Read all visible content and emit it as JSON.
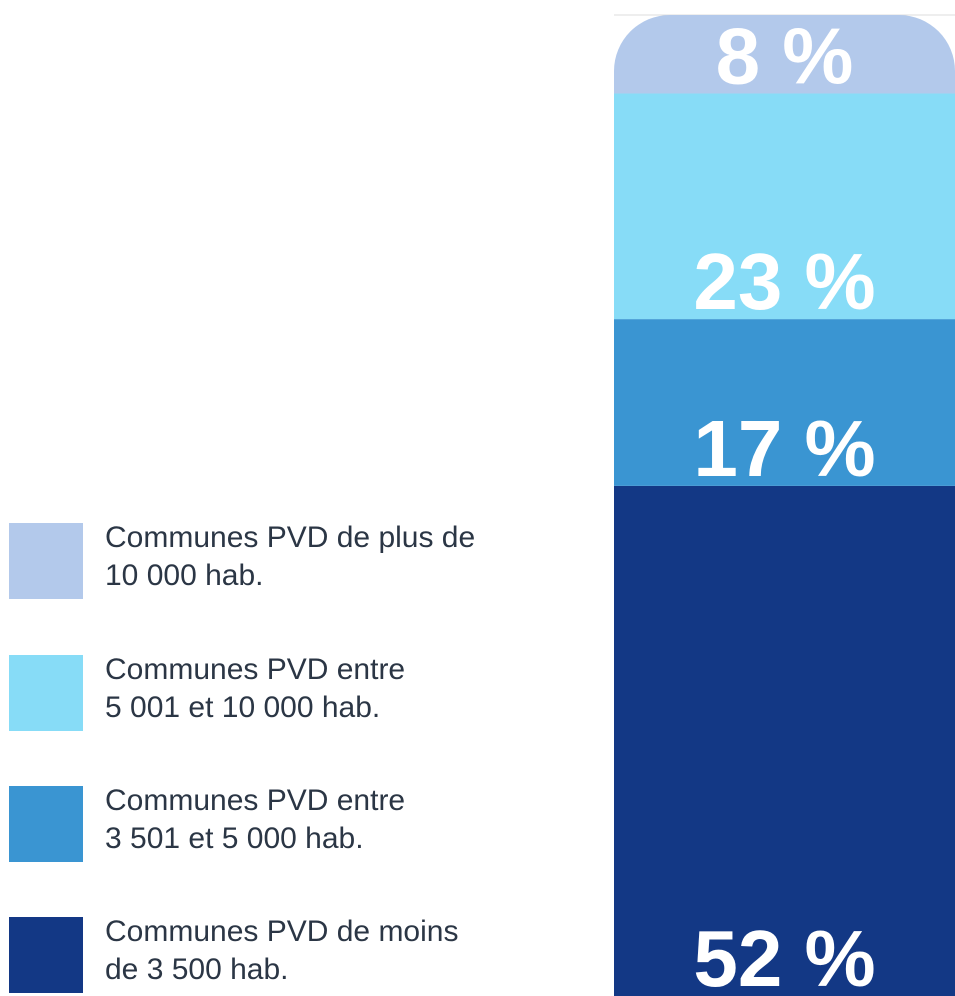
{
  "chart_data": {
    "type": "bar",
    "stacked": true,
    "ylim": [
      0,
      100
    ],
    "series": [
      {
        "name": "Communes PVD de plus de\n10 000 hab.",
        "color": "#b3c9eb",
        "values": [
          8
        ],
        "value_labels": [
          "8 %"
        ]
      },
      {
        "name": "Communes PVD entre\n5 001 et 10 000 hab.",
        "color": "#87dcf7",
        "values": [
          23
        ],
        "value_labels": [
          "23 %"
        ]
      },
      {
        "name": "Communes PVD entre\n3 501 et 5 000 hab.",
        "color": "#3a95d2",
        "values": [
          17
        ],
        "value_labels": [
          "17 %"
        ]
      },
      {
        "name": "Communes PVD de moins\nde 3 500 hab.",
        "color": "#133885",
        "values": [
          52
        ],
        "value_labels": [
          "52 %"
        ]
      }
    ]
  }
}
